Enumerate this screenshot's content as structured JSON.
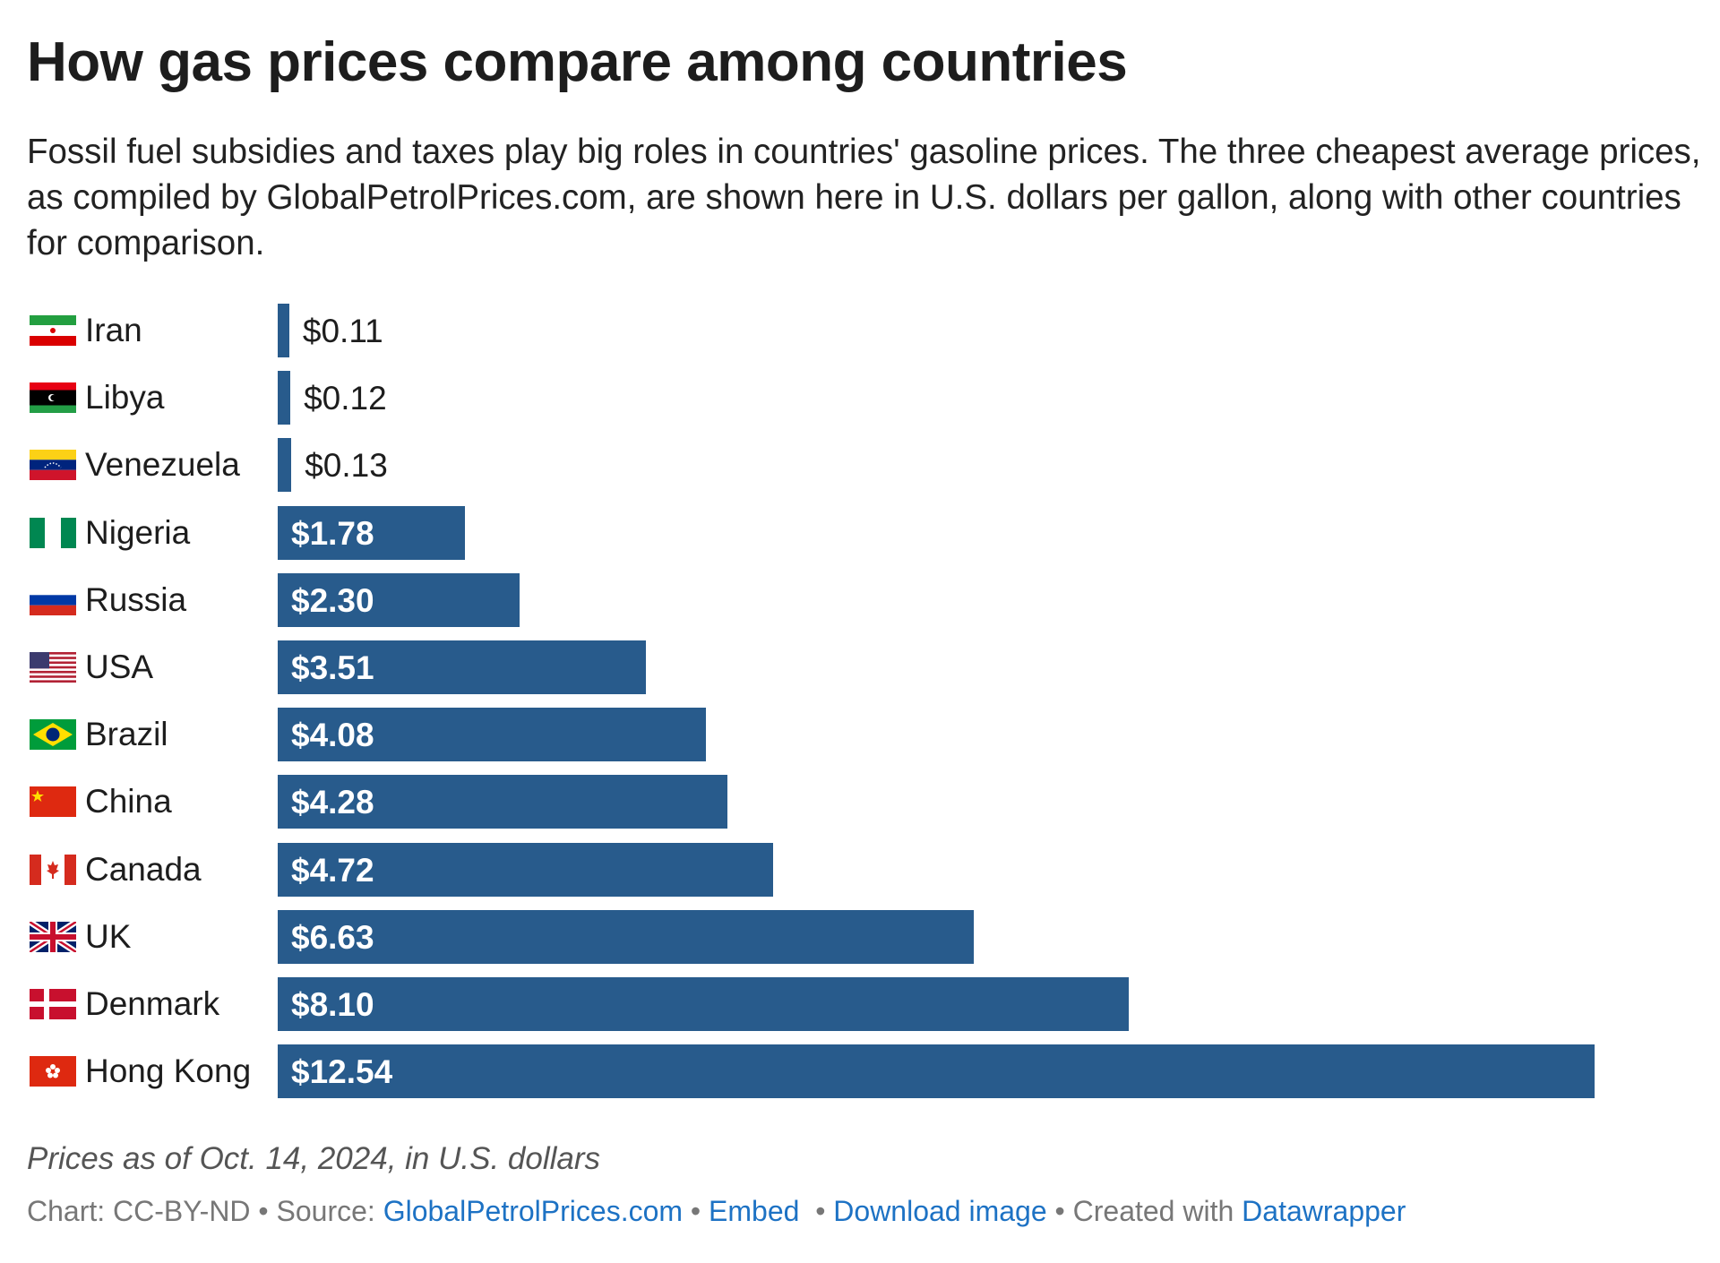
{
  "chart_data": {
    "type": "bar",
    "orientation": "horizontal",
    "title": "How gas prices compare among countries",
    "subtitle": "Fossil fuel subsidies and taxes play big roles in countries' gasoline prices. The three cheapest average prices, as compiled by GlobalPetrolPrices.com, are shown here in U.S. dollars per gallon, along with other countries for comparison.",
    "categories": [
      "Iran",
      "Libya",
      "Venezuela",
      "Nigeria",
      "Russia",
      "USA",
      "Brazil",
      "China",
      "Canada",
      "UK",
      "Denmark",
      "Hong Kong"
    ],
    "values": [
      0.11,
      0.12,
      0.13,
      1.78,
      2.3,
      3.51,
      4.08,
      4.28,
      4.72,
      6.63,
      8.1,
      12.54
    ],
    "data_labels": [
      "$0.11",
      "$0.12",
      "$0.13",
      "$1.78",
      "$2.30",
      "$3.51",
      "$4.08",
      "$4.28",
      "$4.72",
      "$6.63",
      "$8.10",
      "$12.54"
    ],
    "flags": [
      "iran-flag",
      "libya-flag",
      "venezuela-flag",
      "nigeria-flag",
      "russia-flag",
      "usa-flag",
      "brazil-flag",
      "china-flag",
      "canada-flag",
      "uk-flag",
      "denmark-flag",
      "hong-kong-flag"
    ],
    "xlim": [
      0,
      12.54
    ],
    "grid": false,
    "bar_color": "#285b8c"
  },
  "footer": {
    "note": "Prices as of Oct. 14, 2024, in U.S. dollars",
    "chart_license": "Chart: CC-BY-ND",
    "sep": " • ",
    "source_label": "Source: ",
    "source_link": "GlobalPetrolPrices.com",
    "embed": "Embed",
    "download": "Download image",
    "created_with": "Created with ",
    "datawrapper": "Datawrapper",
    "link_color": "#1d72c4"
  }
}
